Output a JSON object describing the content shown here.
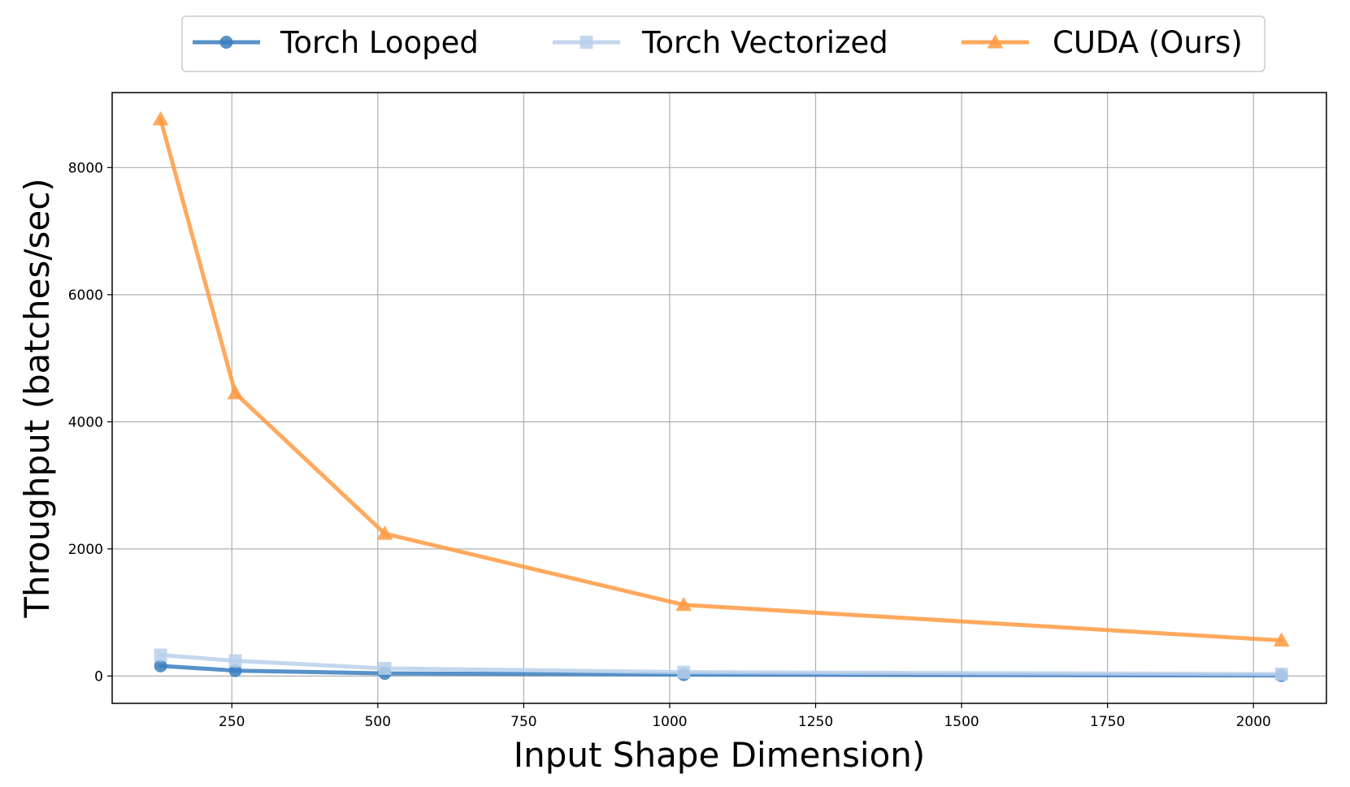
{
  "chart_data": {
    "type": "line",
    "title": "",
    "xlabel": "Input Shape Dimension)",
    "ylabel": "Throughput (batches/sec)",
    "xlim": [
      45,
      2125
    ],
    "ylim": [
      -430,
      9180
    ],
    "xticks": [
      250,
      500,
      750,
      1000,
      1250,
      1500,
      1750,
      2000
    ],
    "yticks": [
      0,
      2000,
      4000,
      6000,
      8000
    ],
    "grid": true,
    "legend_position": "top-center",
    "x": [
      128,
      256,
      512,
      1024,
      2048
    ],
    "series": [
      {
        "name": "Torch Looped",
        "color": "#3a7fbf",
        "marker": "circle",
        "values": [
          160,
          85,
          42,
          22,
          8
        ]
      },
      {
        "name": "Torch Vectorized",
        "color": "#b9d0ec",
        "marker": "square",
        "values": [
          330,
          240,
          120,
          60,
          30
        ]
      },
      {
        "name": "CUDA (Ours)",
        "color": "#ff9a42",
        "marker": "triangle",
        "values": [
          8760,
          4450,
          2240,
          1120,
          560
        ]
      }
    ]
  }
}
